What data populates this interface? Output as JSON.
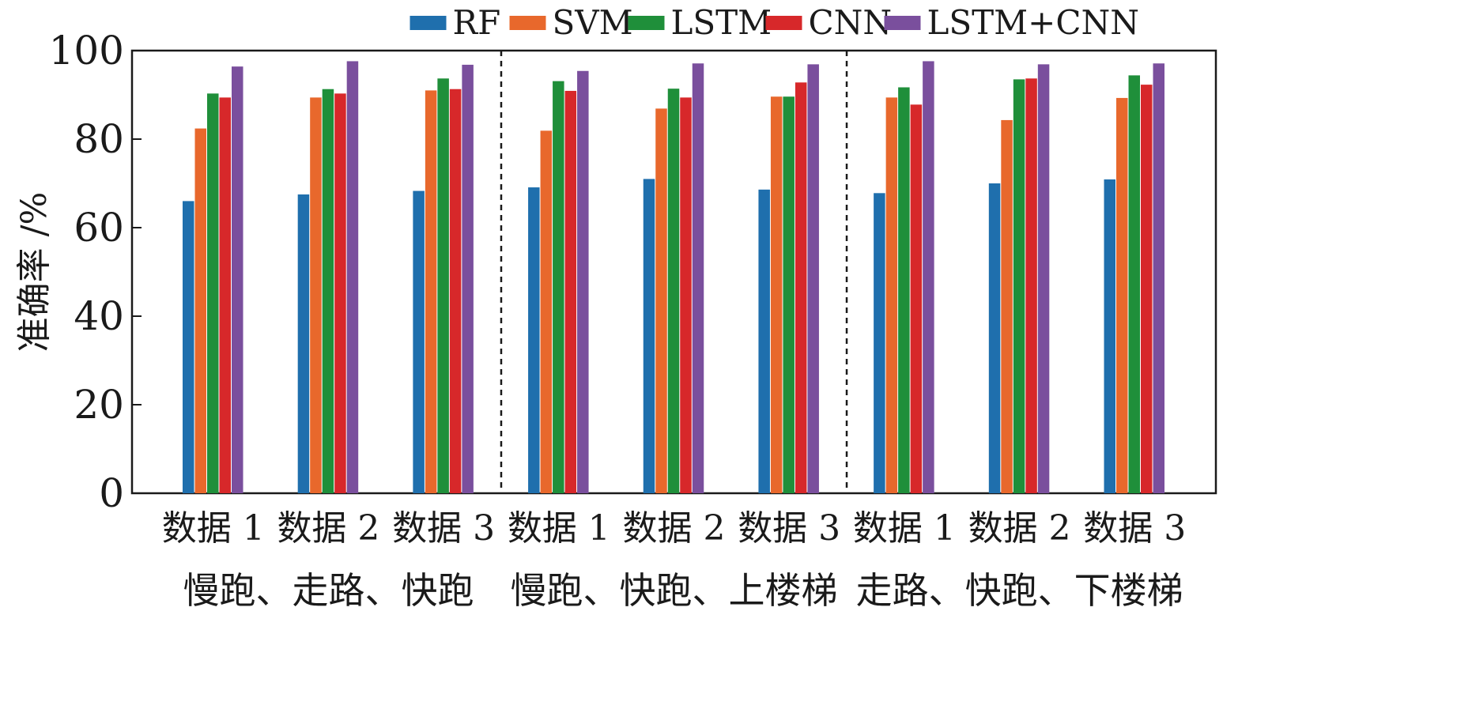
{
  "chart_data": {
    "type": "bar",
    "ylabel": "准确率 /%",
    "ylim": [
      0,
      100
    ],
    "yticks": [
      0,
      20,
      40,
      60,
      80,
      100
    ],
    "grid": false,
    "legend_position": "top-center",
    "categories": [
      "数据 1",
      "数据 2",
      "数据 3",
      "数据 1",
      "数据 2",
      "数据 3",
      "数据 1",
      "数据 2",
      "数据 3"
    ],
    "groups": [
      {
        "label": "慢跑、走路、快跑",
        "categories": 3
      },
      {
        "label": "慢跑、快跑、上楼梯",
        "categories": 3
      },
      {
        "label": "走路、快跑、下楼梯",
        "categories": 3
      }
    ],
    "series": [
      {
        "name": "RF",
        "color": "#1f6fad",
        "values": [
          66,
          67.5,
          68.3,
          69.1,
          71,
          68.6,
          67.8,
          70,
          70.9
        ]
      },
      {
        "name": "SVM",
        "color": "#e8682c",
        "values": [
          82.4,
          89.4,
          91,
          81.9,
          86.9,
          89.6,
          89.4,
          84.3,
          89.3
        ]
      },
      {
        "name": "LSTM",
        "color": "#1f8f3a",
        "values": [
          90.3,
          91.3,
          93.7,
          93.1,
          91.4,
          89.6,
          91.7,
          93.5,
          94.4
        ]
      },
      {
        "name": "CNN",
        "color": "#d7282a",
        "values": [
          89.4,
          90.3,
          91.3,
          90.9,
          89.4,
          92.8,
          87.8,
          93.7,
          92.3
        ]
      },
      {
        "name": "LSTM+CNN",
        "color": "#7a4f9d",
        "values": [
          96.4,
          97.6,
          96.8,
          95.4,
          97.1,
          96.9,
          97.6,
          96.9,
          97.1
        ]
      }
    ]
  }
}
